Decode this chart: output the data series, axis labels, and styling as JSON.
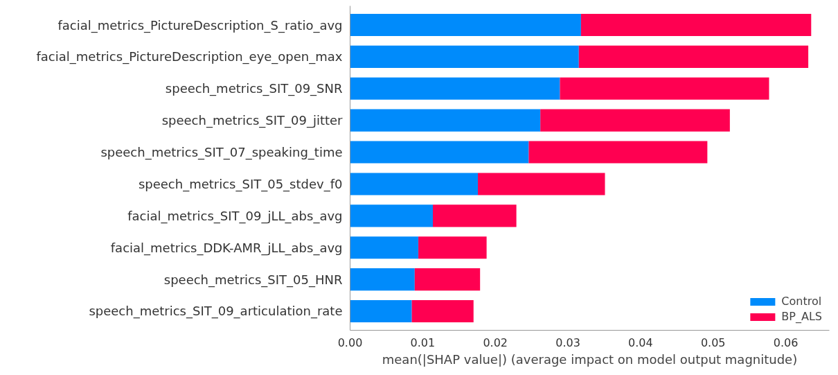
{
  "chart_data": {
    "type": "bar",
    "orientation": "horizontal",
    "stacked": true,
    "categories": [
      "facial_metrics_PictureDescription_S_ratio_avg",
      "facial_metrics_PictureDescription_eye_open_max",
      "speech_metrics_SIT_09_SNR",
      "speech_metrics_SIT_09_jitter",
      "speech_metrics_SIT_07_speaking_time",
      "speech_metrics_SIT_05_stdev_f0",
      "facial_metrics_SIT_09_jLL_abs_avg",
      "facial_metrics_DDK-AMR_jLL_abs_avg",
      "speech_metrics_SIT_05_HNR",
      "speech_metrics_SIT_09_articulation_rate"
    ],
    "series": [
      {
        "name": "Control",
        "color": "#008bfb",
        "values": [
          0.0318,
          0.0315,
          0.0289,
          0.0262,
          0.0246,
          0.0176,
          0.0114,
          0.0094,
          0.0089,
          0.0085
        ]
      },
      {
        "name": "BP_ALS",
        "color": "#ff0051",
        "values": [
          0.0317,
          0.0316,
          0.0288,
          0.0261,
          0.0246,
          0.0175,
          0.0115,
          0.0094,
          0.009,
          0.0085
        ]
      }
    ],
    "xlabel": "mean(|SHAP value|) (average impact on model output magnitude)",
    "xlim": [
      0,
      0.066
    ],
    "xticks": [
      {
        "value": 0,
        "label": "0.00"
      },
      {
        "value": 0.01,
        "label": "0.01"
      },
      {
        "value": 0.02,
        "label": "0.02"
      },
      {
        "value": 0.03,
        "label": "0.03"
      },
      {
        "value": 0.04,
        "label": "0.04"
      },
      {
        "value": 0.05,
        "label": "0.05"
      },
      {
        "value": 0.06,
        "label": "0.06"
      }
    ],
    "grid": false,
    "legend": "bottom right"
  }
}
